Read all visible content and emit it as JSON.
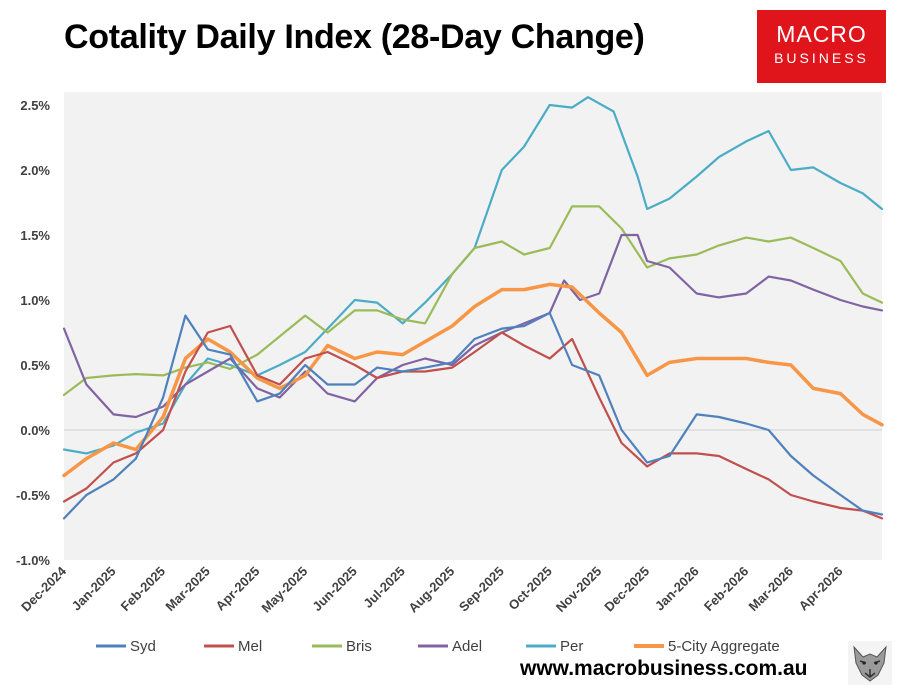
{
  "header": {
    "title": "Cotality Daily Index (28-Day Change)",
    "logo_line1": "MACRO",
    "logo_line2": "BUSINESS",
    "brand_color": "#e0141b"
  },
  "footer": {
    "url": "www.macrobusiness.com.au",
    "mascot_icon": "wolf-head-icon"
  },
  "chart_data": {
    "type": "line",
    "title": "Cotality Daily Index (28-Day Change)",
    "xlabel": "",
    "ylabel": "",
    "x_range": [
      "2024-12-01",
      "2026-04-27"
    ],
    "x_ticks": [
      {
        "date": "2024-12-01",
        "label": "Dec-2024"
      },
      {
        "date": "2025-01-01",
        "label": "Jan-2025"
      },
      {
        "date": "2025-02-01",
        "label": "Feb-2025"
      },
      {
        "date": "2025-03-01",
        "label": "Mar-2025"
      },
      {
        "date": "2025-04-01",
        "label": "Apr-2025"
      },
      {
        "date": "2025-05-01",
        "label": "May-2025"
      },
      {
        "date": "2025-06-01",
        "label": "Jun-2025"
      },
      {
        "date": "2025-07-01",
        "label": "Jul-2025"
      },
      {
        "date": "2025-08-01",
        "label": "Aug-2025"
      },
      {
        "date": "2025-09-01",
        "label": "Sep-2025"
      },
      {
        "date": "2025-10-01",
        "label": "Oct-2025"
      },
      {
        "date": "2025-11-01",
        "label": "Nov-2025"
      },
      {
        "date": "2025-12-01",
        "label": "Dec-2025"
      },
      {
        "date": "2026-01-01",
        "label": "Jan-2026"
      },
      {
        "date": "2026-02-01",
        "label": "Feb-2026"
      },
      {
        "date": "2026-03-01",
        "label": "Mar-2026"
      },
      {
        "date": "2026-04-01",
        "label": "Apr-2026"
      }
    ],
    "ylim": [
      -1.0,
      2.6
    ],
    "y_ticks": [
      {
        "value": -1.0,
        "label": "-1.0%"
      },
      {
        "value": -0.5,
        "label": "-0.5%"
      },
      {
        "value": 0.0,
        "label": "0.0%"
      },
      {
        "value": 0.5,
        "label": "0.5%"
      },
      {
        "value": 1.0,
        "label": "1.0%"
      },
      {
        "value": 1.5,
        "label": "1.5%"
      },
      {
        "value": 2.0,
        "label": "2.0%"
      },
      {
        "value": 2.5,
        "label": "2.5%"
      }
    ],
    "grid": "horizontal-zero-line",
    "plot_background": "#f2f2f2",
    "legend_position": "bottom",
    "series": [
      {
        "name": "Per",
        "color": "#4bacc6",
        "points": [
          [
            "2024-12-01",
            -0.15
          ],
          [
            "2024-12-15",
            -0.18
          ],
          [
            "2025-01-01",
            -0.12
          ],
          [
            "2025-01-15",
            -0.02
          ],
          [
            "2025-02-01",
            0.05
          ],
          [
            "2025-02-15",
            0.35
          ],
          [
            "2025-03-01",
            0.55
          ],
          [
            "2025-03-15",
            0.5
          ],
          [
            "2025-04-01",
            0.42
          ],
          [
            "2025-04-15",
            0.5
          ],
          [
            "2025-05-01",
            0.6
          ],
          [
            "2025-05-15",
            0.78
          ],
          [
            "2025-06-01",
            1.0
          ],
          [
            "2025-06-15",
            0.98
          ],
          [
            "2025-07-01",
            0.82
          ],
          [
            "2025-07-15",
            0.98
          ],
          [
            "2025-08-01",
            1.2
          ],
          [
            "2025-08-15",
            1.4
          ],
          [
            "2025-09-01",
            2.0
          ],
          [
            "2025-09-15",
            2.18
          ],
          [
            "2025-10-01",
            2.5
          ],
          [
            "2025-10-15",
            2.48
          ],
          [
            "2025-10-25",
            2.56
          ],
          [
            "2025-11-10",
            2.45
          ],
          [
            "2025-11-25",
            1.95
          ],
          [
            "2025-12-01",
            1.7
          ],
          [
            "2025-12-15",
            1.78
          ],
          [
            "2026-01-01",
            1.95
          ],
          [
            "2026-01-15",
            2.1
          ],
          [
            "2026-02-01",
            2.22
          ],
          [
            "2026-02-15",
            2.3
          ],
          [
            "2026-03-01",
            2.0
          ],
          [
            "2026-03-15",
            2.02
          ],
          [
            "2026-04-01",
            1.9
          ],
          [
            "2026-04-15",
            1.82
          ],
          [
            "2026-04-27",
            1.7
          ]
        ]
      },
      {
        "name": "Bris",
        "color": "#9bbb59",
        "points": [
          [
            "2024-12-01",
            0.27
          ],
          [
            "2024-12-15",
            0.4
          ],
          [
            "2025-01-01",
            0.42
          ],
          [
            "2025-01-15",
            0.43
          ],
          [
            "2025-02-01",
            0.42
          ],
          [
            "2025-02-15",
            0.48
          ],
          [
            "2025-03-01",
            0.52
          ],
          [
            "2025-03-15",
            0.47
          ],
          [
            "2025-04-01",
            0.58
          ],
          [
            "2025-04-15",
            0.72
          ],
          [
            "2025-05-01",
            0.88
          ],
          [
            "2025-05-15",
            0.75
          ],
          [
            "2025-06-01",
            0.92
          ],
          [
            "2025-06-15",
            0.92
          ],
          [
            "2025-07-01",
            0.85
          ],
          [
            "2025-07-15",
            0.82
          ],
          [
            "2025-08-01",
            1.2
          ],
          [
            "2025-08-15",
            1.4
          ],
          [
            "2025-09-01",
            1.45
          ],
          [
            "2025-09-15",
            1.35
          ],
          [
            "2025-10-01",
            1.4
          ],
          [
            "2025-10-15",
            1.72
          ],
          [
            "2025-11-01",
            1.72
          ],
          [
            "2025-11-15",
            1.55
          ],
          [
            "2025-12-01",
            1.25
          ],
          [
            "2025-12-15",
            1.32
          ],
          [
            "2026-01-01",
            1.35
          ],
          [
            "2026-01-15",
            1.42
          ],
          [
            "2026-02-01",
            1.48
          ],
          [
            "2026-02-15",
            1.45
          ],
          [
            "2026-03-01",
            1.48
          ],
          [
            "2026-03-15",
            1.4
          ],
          [
            "2026-04-01",
            1.3
          ],
          [
            "2026-04-15",
            1.05
          ],
          [
            "2026-04-27",
            0.98
          ]
        ]
      },
      {
        "name": "Adel",
        "color": "#8064a2",
        "points": [
          [
            "2024-12-01",
            0.78
          ],
          [
            "2024-12-15",
            0.35
          ],
          [
            "2025-01-01",
            0.12
          ],
          [
            "2025-01-15",
            0.1
          ],
          [
            "2025-02-01",
            0.18
          ],
          [
            "2025-02-15",
            0.35
          ],
          [
            "2025-03-01",
            0.45
          ],
          [
            "2025-03-15",
            0.55
          ],
          [
            "2025-04-01",
            0.32
          ],
          [
            "2025-04-15",
            0.25
          ],
          [
            "2025-05-01",
            0.45
          ],
          [
            "2025-05-15",
            0.28
          ],
          [
            "2025-06-01",
            0.22
          ],
          [
            "2025-06-15",
            0.4
          ],
          [
            "2025-07-01",
            0.5
          ],
          [
            "2025-07-15",
            0.55
          ],
          [
            "2025-08-01",
            0.5
          ],
          [
            "2025-08-15",
            0.65
          ],
          [
            "2025-09-01",
            0.75
          ],
          [
            "2025-09-15",
            0.82
          ],
          [
            "2025-10-01",
            0.9
          ],
          [
            "2025-10-10",
            1.15
          ],
          [
            "2025-10-20",
            1.0
          ],
          [
            "2025-11-01",
            1.05
          ],
          [
            "2025-11-15",
            1.5
          ],
          [
            "2025-11-25",
            1.5
          ],
          [
            "2025-12-01",
            1.3
          ],
          [
            "2025-12-15",
            1.25
          ],
          [
            "2026-01-01",
            1.05
          ],
          [
            "2026-01-15",
            1.02
          ],
          [
            "2026-02-01",
            1.05
          ],
          [
            "2026-02-15",
            1.18
          ],
          [
            "2026-03-01",
            1.15
          ],
          [
            "2026-03-15",
            1.08
          ],
          [
            "2026-04-01",
            1.0
          ],
          [
            "2026-04-15",
            0.95
          ],
          [
            "2026-04-27",
            0.92
          ]
        ]
      },
      {
        "name": "5-City Aggregate",
        "color": "#f79646",
        "points": [
          [
            "2024-12-01",
            -0.35
          ],
          [
            "2024-12-15",
            -0.22
          ],
          [
            "2025-01-01",
            -0.1
          ],
          [
            "2025-01-15",
            -0.15
          ],
          [
            "2025-02-01",
            0.1
          ],
          [
            "2025-02-15",
            0.55
          ],
          [
            "2025-03-01",
            0.7
          ],
          [
            "2025-03-15",
            0.6
          ],
          [
            "2025-04-01",
            0.4
          ],
          [
            "2025-04-15",
            0.32
          ],
          [
            "2025-05-01",
            0.42
          ],
          [
            "2025-05-15",
            0.65
          ],
          [
            "2025-06-01",
            0.55
          ],
          [
            "2025-06-15",
            0.6
          ],
          [
            "2025-07-01",
            0.58
          ],
          [
            "2025-07-15",
            0.68
          ],
          [
            "2025-08-01",
            0.8
          ],
          [
            "2025-08-15",
            0.95
          ],
          [
            "2025-09-01",
            1.08
          ],
          [
            "2025-09-15",
            1.08
          ],
          [
            "2025-10-01",
            1.12
          ],
          [
            "2025-10-15",
            1.1
          ],
          [
            "2025-11-01",
            0.9
          ],
          [
            "2025-11-15",
            0.75
          ],
          [
            "2025-12-01",
            0.42
          ],
          [
            "2025-12-15",
            0.52
          ],
          [
            "2026-01-01",
            0.55
          ],
          [
            "2026-01-15",
            0.55
          ],
          [
            "2026-02-01",
            0.55
          ],
          [
            "2026-02-15",
            0.52
          ],
          [
            "2026-03-01",
            0.5
          ],
          [
            "2026-03-15",
            0.32
          ],
          [
            "2026-04-01",
            0.28
          ],
          [
            "2026-04-15",
            0.12
          ],
          [
            "2026-04-27",
            0.04
          ]
        ]
      },
      {
        "name": "Mel",
        "color": "#c0504d",
        "points": [
          [
            "2024-12-01",
            -0.55
          ],
          [
            "2024-12-15",
            -0.45
          ],
          [
            "2025-01-01",
            -0.25
          ],
          [
            "2025-01-15",
            -0.18
          ],
          [
            "2025-02-01",
            0.0
          ],
          [
            "2025-02-15",
            0.45
          ],
          [
            "2025-03-01",
            0.75
          ],
          [
            "2025-03-15",
            0.8
          ],
          [
            "2025-04-01",
            0.42
          ],
          [
            "2025-04-15",
            0.35
          ],
          [
            "2025-05-01",
            0.55
          ],
          [
            "2025-05-15",
            0.6
          ],
          [
            "2025-06-01",
            0.5
          ],
          [
            "2025-06-15",
            0.4
          ],
          [
            "2025-07-01",
            0.45
          ],
          [
            "2025-07-15",
            0.45
          ],
          [
            "2025-08-01",
            0.48
          ],
          [
            "2025-08-15",
            0.6
          ],
          [
            "2025-09-01",
            0.75
          ],
          [
            "2025-09-15",
            0.65
          ],
          [
            "2025-10-01",
            0.55
          ],
          [
            "2025-10-15",
            0.7
          ],
          [
            "2025-11-01",
            0.25
          ],
          [
            "2025-11-15",
            -0.1
          ],
          [
            "2025-12-01",
            -0.28
          ],
          [
            "2025-12-15",
            -0.18
          ],
          [
            "2026-01-01",
            -0.18
          ],
          [
            "2026-01-15",
            -0.2
          ],
          [
            "2026-02-01",
            -0.3
          ],
          [
            "2026-02-15",
            -0.38
          ],
          [
            "2026-03-01",
            -0.5
          ],
          [
            "2026-03-15",
            -0.55
          ],
          [
            "2026-04-01",
            -0.6
          ],
          [
            "2026-04-15",
            -0.62
          ],
          [
            "2026-04-27",
            -0.68
          ]
        ]
      },
      {
        "name": "Syd",
        "color": "#4f81bd",
        "points": [
          [
            "2024-12-01",
            -0.68
          ],
          [
            "2024-12-15",
            -0.5
          ],
          [
            "2025-01-01",
            -0.38
          ],
          [
            "2025-01-15",
            -0.22
          ],
          [
            "2025-02-01",
            0.25
          ],
          [
            "2025-02-15",
            0.88
          ],
          [
            "2025-03-01",
            0.62
          ],
          [
            "2025-03-15",
            0.58
          ],
          [
            "2025-04-01",
            0.22
          ],
          [
            "2025-04-15",
            0.28
          ],
          [
            "2025-05-01",
            0.5
          ],
          [
            "2025-05-15",
            0.35
          ],
          [
            "2025-06-01",
            0.35
          ],
          [
            "2025-06-15",
            0.48
          ],
          [
            "2025-07-01",
            0.45
          ],
          [
            "2025-07-15",
            0.48
          ],
          [
            "2025-08-01",
            0.52
          ],
          [
            "2025-08-15",
            0.7
          ],
          [
            "2025-09-01",
            0.78
          ],
          [
            "2025-09-15",
            0.8
          ],
          [
            "2025-10-01",
            0.9
          ],
          [
            "2025-10-15",
            0.5
          ],
          [
            "2025-11-01",
            0.42
          ],
          [
            "2025-11-15",
            0.0
          ],
          [
            "2025-12-01",
            -0.25
          ],
          [
            "2025-12-15",
            -0.2
          ],
          [
            "2026-01-01",
            0.12
          ],
          [
            "2026-01-15",
            0.1
          ],
          [
            "2026-02-01",
            0.05
          ],
          [
            "2026-02-15",
            0.0
          ],
          [
            "2026-03-01",
            -0.2
          ],
          [
            "2026-03-15",
            -0.35
          ],
          [
            "2026-04-01",
            -0.5
          ],
          [
            "2026-04-15",
            -0.62
          ],
          [
            "2026-04-27",
            -0.65
          ]
        ]
      }
    ],
    "legend": [
      {
        "name": "Syd",
        "color": "#4f81bd"
      },
      {
        "name": "Mel",
        "color": "#c0504d"
      },
      {
        "name": "Bris",
        "color": "#9bbb59"
      },
      {
        "name": "Adel",
        "color": "#8064a2"
      },
      {
        "name": "Per",
        "color": "#4bacc6"
      },
      {
        "name": "5-City Aggregate",
        "color": "#f79646"
      }
    ]
  }
}
